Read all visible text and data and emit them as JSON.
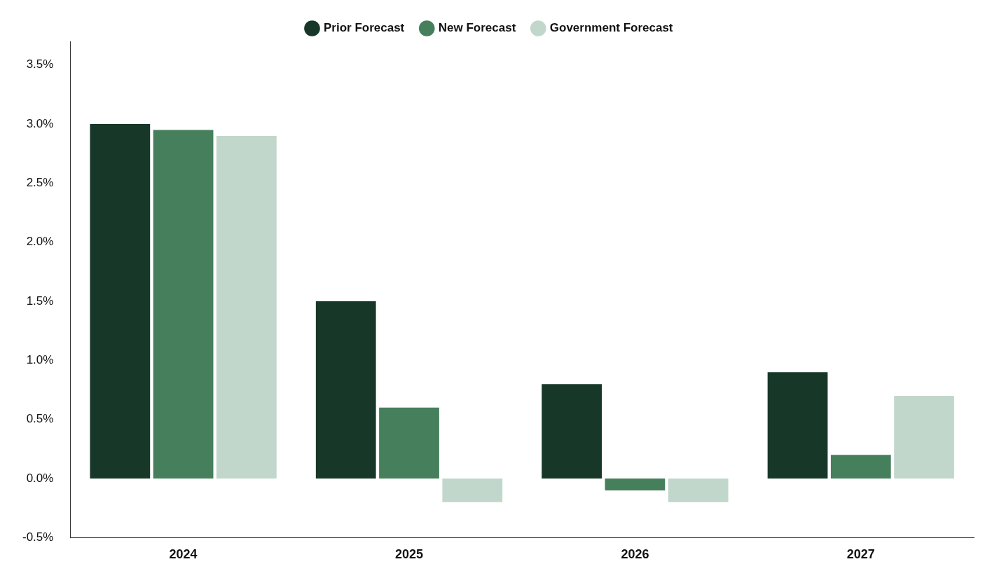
{
  "chart_data": {
    "type": "bar",
    "categories": [
      "2024",
      "2025",
      "2026",
      "2027"
    ],
    "series": [
      {
        "name": "Prior Forecast",
        "color": "#173828",
        "values": [
          3.0,
          1.5,
          0.8,
          0.9
        ]
      },
      {
        "name": "New Forecast",
        "color": "#467f5c",
        "values": [
          2.95,
          0.6,
          -0.1,
          0.2
        ]
      },
      {
        "name": "Government Forecast",
        "color": "#c2d7cb",
        "values": [
          2.9,
          -0.2,
          -0.2,
          0.7
        ]
      }
    ],
    "ylim": [
      -0.5,
      3.7
    ],
    "yticks": [
      {
        "value": -0.5,
        "label": "-0.5%"
      },
      {
        "value": 0,
        "label": "0.0%"
      },
      {
        "value": 0.5,
        "label": "0.5%"
      },
      {
        "value": 1,
        "label": "1.0%"
      },
      {
        "value": 1.5,
        "label": "1.5%"
      },
      {
        "value": 2,
        "label": "2.0%"
      },
      {
        "value": 2.5,
        "label": "2.5%"
      },
      {
        "value": 3,
        "label": "3.0%"
      },
      {
        "value": 3.5,
        "label": "3.5%"
      }
    ],
    "grid": false,
    "legend": "top"
  }
}
